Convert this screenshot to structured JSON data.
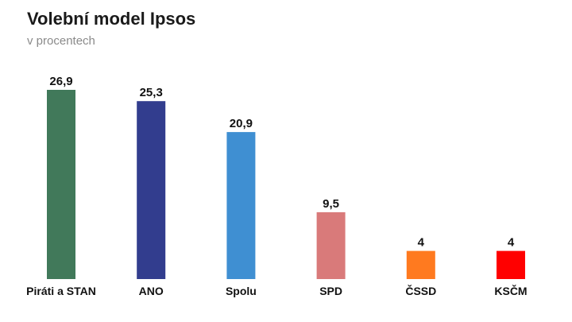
{
  "chart_data": {
    "type": "bar",
    "title": "Volební model Ipsos",
    "subtitle": "v procentech",
    "xlabel": "",
    "ylabel": "",
    "ylim": [
      0,
      26.9
    ],
    "grid": false,
    "categories": [
      "Piráti a STAN",
      "ANO",
      "Spolu",
      "SPD",
      "ČSSD",
      "KSČM"
    ],
    "values": [
      26.9,
      25.3,
      20.9,
      9.5,
      4,
      4
    ],
    "value_labels": [
      "26,9",
      "25,3",
      "20,9",
      "9,5",
      "4",
      "4"
    ],
    "colors": [
      "#41795a",
      "#323d8e",
      "#3f8fd2",
      "#d97a7a",
      "#ff7a1f",
      "#ff0000"
    ]
  }
}
